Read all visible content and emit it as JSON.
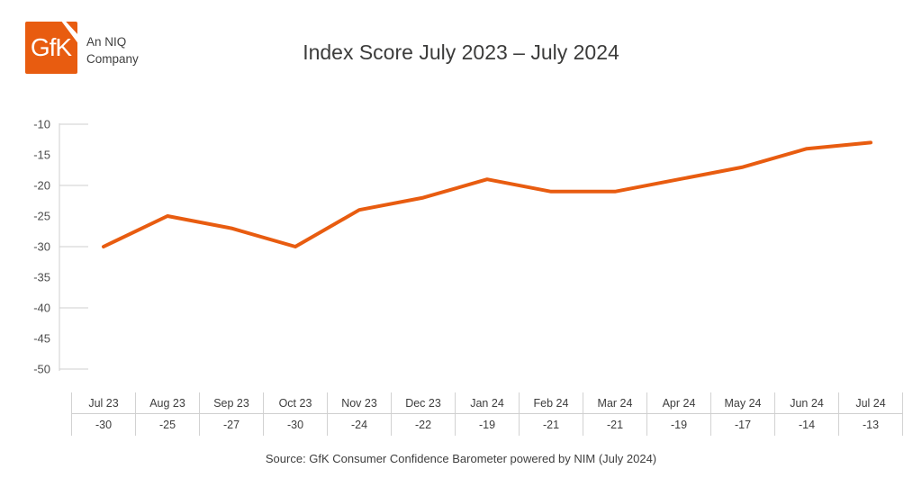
{
  "colors": {
    "accent_orange": "#E85C10",
    "title_text": "#3C3C3B",
    "axis_text": "#4C4C4C",
    "axis_line": "#CFCFCF"
  },
  "header": {
    "logo": {
      "text": "GfK",
      "company_line1": "An NIQ",
      "company_line2": "Company"
    },
    "title": "Index Score July 2023 – July 2024"
  },
  "chart_data": {
    "type": "line",
    "title": "Index Score July 2023 – July 2024",
    "categories": [
      "Jul 23",
      "Aug 23",
      "Sep 23",
      "Oct 23",
      "Nov 23",
      "Dec 23",
      "Jan 24",
      "Feb 24",
      "Mar 24",
      "Apr 24",
      "May 24",
      "Jun 24",
      "Jul 24"
    ],
    "values": [
      -30,
      -25,
      -27,
      -30,
      -24,
      -22,
      -19,
      -21,
      -21,
      -19,
      -17,
      -14,
      -13
    ],
    "value_labels": [
      "-30",
      "-25",
      "-27",
      "-30",
      "-24",
      "-22",
      "-19",
      "-21",
      "-21",
      "-19",
      "-17",
      "-14",
      "-13"
    ],
    "xlabel": "",
    "ylabel": "",
    "ylim": [
      -50,
      -10
    ],
    "yticks": [
      -10,
      -15,
      -20,
      -25,
      -30,
      -35,
      -40,
      -45,
      -50
    ],
    "ytick_labels": [
      "-10",
      "-15",
      "-20",
      "-25",
      "-30",
      "-35",
      "-40",
      "-45",
      "-50"
    ],
    "grid": false,
    "legend": "none",
    "line_color": "#E85C10"
  },
  "footer": {
    "source": "Source: GfK Consumer Confidence Barometer powered by NIM (July 2024)"
  }
}
